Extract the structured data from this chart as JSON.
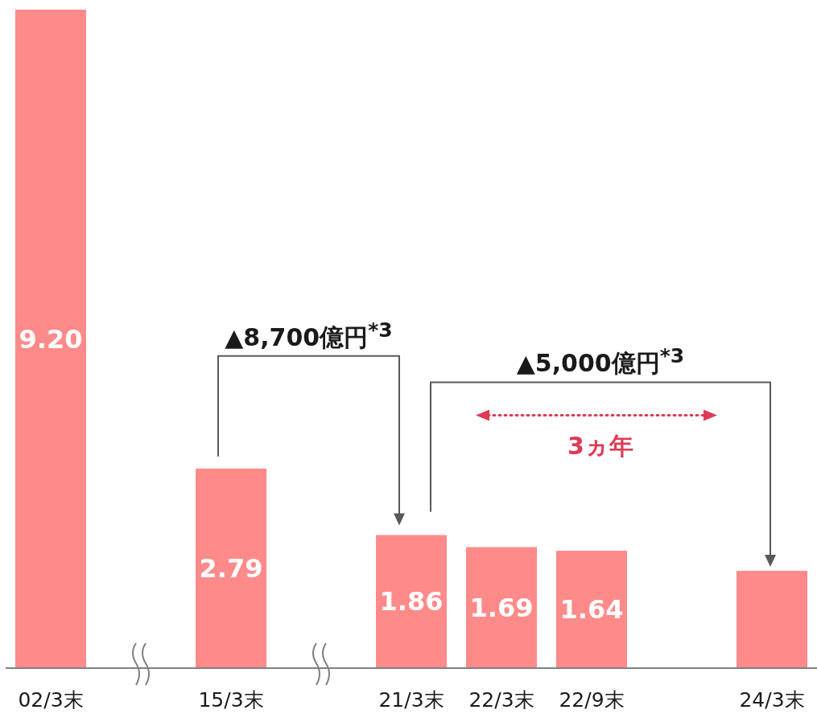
{
  "chart_data": {
    "type": "bar",
    "categories": [
      "02/3末",
      null,
      "15/3末",
      null,
      "21/3末",
      "22/3末",
      "22/9末",
      null,
      "24/3末"
    ],
    "values": [
      9.2,
      null,
      2.79,
      null,
      1.86,
      1.69,
      1.64,
      null,
      1.36
    ],
    "value_labels": [
      "9.20",
      null,
      "2.79",
      null,
      "1.86",
      "1.69",
      "1.64",
      null,
      null
    ],
    "color": "#ff8a8a",
    "annotations": [
      "▲8,700億円$^{*3}$",
      "▲5,000億円$^{*3}$",
      "3ヵ年"
    ]
  }
}
